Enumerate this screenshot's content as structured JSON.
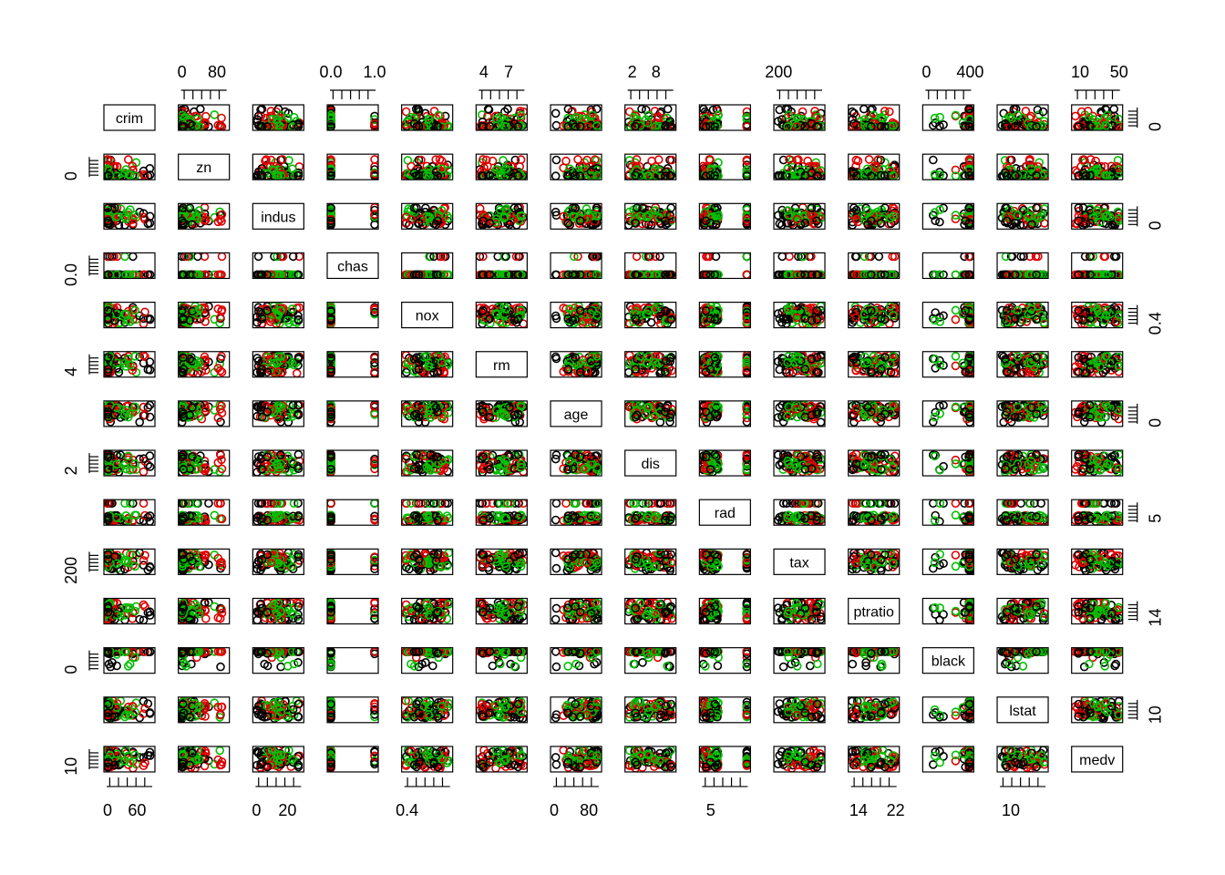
{
  "chart_data": {
    "type": "scatter",
    "variables": [
      "crim",
      "zn",
      "indus",
      "chas",
      "nox",
      "rm",
      "age",
      "dis",
      "rad",
      "tax",
      "ptratio",
      "black",
      "lstat",
      "medv"
    ],
    "colors": [
      "#000000",
      "#DF0000",
      "#00C000"
    ],
    "ranges": {
      "crim": [
        0,
        89
      ],
      "zn": [
        0,
        100
      ],
      "indus": [
        0.5,
        28
      ],
      "chas": [
        0,
        1
      ],
      "nox": [
        0.38,
        0.88
      ],
      "rm": [
        3.5,
        8.8
      ],
      "age": [
        3,
        100
      ],
      "dis": [
        1.1,
        12.1
      ],
      "rad": [
        1,
        24
      ],
      "tax": [
        187,
        711
      ],
      "ptratio": [
        12.6,
        22
      ],
      "black": [
        0,
        397
      ],
      "lstat": [
        1.7,
        38
      ],
      "medv": [
        5,
        50
      ]
    },
    "axis_ticks": {
      "top": [
        {
          "var": "zn",
          "labels": [
            "0",
            "80"
          ]
        },
        {
          "var": "chas",
          "labels": [
            "0.0",
            "1.0"
          ]
        },
        {
          "var": "rm",
          "labels": [
            "4",
            "7"
          ]
        },
        {
          "var": "dis",
          "labels": [
            "2",
            "8"
          ]
        },
        {
          "var": "tax",
          "labels": [
            "200"
          ]
        },
        {
          "var": "black",
          "labels": [
            "0",
            "400"
          ]
        },
        {
          "var": "medv",
          "labels": [
            "10",
            "50"
          ]
        }
      ],
      "bottom": [
        {
          "var": "crim",
          "labels": [
            "0",
            "60"
          ]
        },
        {
          "var": "indus",
          "labels": [
            "0",
            "20"
          ]
        },
        {
          "var": "nox",
          "labels": [
            "0.4"
          ]
        },
        {
          "var": "age",
          "labels": [
            "0",
            "80"
          ]
        },
        {
          "var": "rad",
          "labels": [
            "5"
          ]
        },
        {
          "var": "ptratio",
          "labels": [
            "14",
            "22"
          ]
        },
        {
          "var": "lstat",
          "labels": [
            "10"
          ]
        }
      ],
      "left": [
        {
          "var": "zn",
          "labels": [
            "0"
          ]
        },
        {
          "var": "chas",
          "labels": [
            "0.0"
          ]
        },
        {
          "var": "rm",
          "labels": [
            "4"
          ]
        },
        {
          "var": "dis",
          "labels": [
            "2"
          ]
        },
        {
          "var": "tax",
          "labels": [
            "200"
          ]
        },
        {
          "var": "black",
          "labels": [
            "0"
          ]
        },
        {
          "var": "medv",
          "labels": [
            "10"
          ]
        }
      ],
      "right": [
        {
          "var": "crim",
          "labels": [
            "0"
          ]
        },
        {
          "var": "indus",
          "labels": [
            "0"
          ]
        },
        {
          "var": "nox",
          "labels": [
            "0.4"
          ]
        },
        {
          "var": "age",
          "labels": [
            "0"
          ]
        },
        {
          "var": "rad",
          "labels": [
            "5"
          ]
        },
        {
          "var": "ptratio",
          "labels": [
            "14"
          ]
        },
        {
          "var": "lstat",
          "labels": [
            "10"
          ]
        }
      ]
    }
  }
}
